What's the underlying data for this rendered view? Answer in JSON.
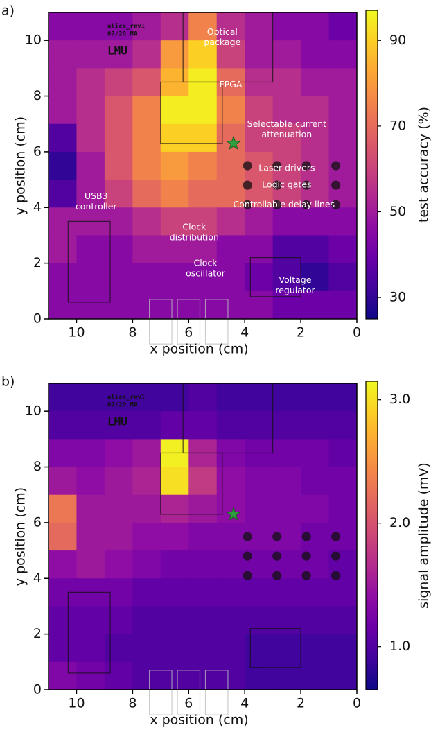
{
  "chart_data": [
    {
      "type": "heatmap",
      "panel_label": "a)",
      "xlabel": "x position (cm)",
      "ylabel": "y position (cm)",
      "colorbar_label": "test accuracy (%)",
      "colormap": "plasma",
      "xlim": [
        11,
        0
      ],
      "ylim": [
        0,
        11
      ],
      "xticks": [
        10,
        8,
        6,
        4,
        2,
        0
      ],
      "yticks": [
        0,
        2,
        4,
        6,
        8,
        10
      ],
      "x_bins": [
        11,
        10,
        9,
        8,
        7,
        6,
        5,
        4,
        3,
        2,
        1,
        0
      ],
      "y_bins": [
        11,
        10,
        9,
        8,
        7,
        6,
        5,
        4,
        3,
        2,
        1,
        0
      ],
      "clim": [
        25,
        97
      ],
      "cticks": [
        30,
        50,
        70,
        90
      ],
      "z": [
        [
          45,
          45,
          45,
          50,
          55,
          75,
          55,
          50,
          45,
          45,
          40
        ],
        [
          50,
          50,
          50,
          55,
          80,
          90,
          60,
          50,
          50,
          45,
          45
        ],
        [
          50,
          55,
          60,
          65,
          85,
          95,
          70,
          55,
          55,
          50,
          50
        ],
        [
          50,
          55,
          65,
          75,
          95,
          95,
          75,
          60,
          55,
          55,
          50
        ],
        [
          35,
          55,
          65,
          75,
          90,
          90,
          70,
          60,
          60,
          55,
          50
        ],
        [
          30,
          50,
          65,
          75,
          80,
          75,
          70,
          65,
          60,
          55,
          50
        ],
        [
          35,
          50,
          60,
          70,
          75,
          70,
          70,
          65,
          60,
          55,
          50
        ],
        [
          50,
          50,
          50,
          55,
          60,
          60,
          55,
          50,
          45,
          45,
          45
        ],
        [
          50,
          45,
          45,
          50,
          50,
          50,
          45,
          45,
          35,
          35,
          40
        ],
        [
          45,
          45,
          45,
          45,
          45,
          45,
          45,
          40,
          35,
          30,
          35
        ],
        [
          45,
          45,
          45,
          45,
          45,
          45,
          45,
          45,
          40,
          40,
          40
        ]
      ],
      "marker": {
        "x": 4.4,
        "y": 6.3,
        "color": "#2e9e3e"
      },
      "board_text": [
        "alice_rev1",
        "07/20 MA",
        "LMU"
      ],
      "annotations": [
        [
          "Optical",
          "package"
        ],
        [
          "FPGA"
        ],
        [
          "Selectable current",
          "attenuation"
        ],
        [
          "Laser drivers"
        ],
        [
          "Logic gates"
        ],
        [
          "Controllable delay lines"
        ],
        [
          "USB3",
          "controller"
        ],
        [
          "Clock",
          "distribution"
        ],
        [
          "Clock",
          "oscillator"
        ],
        [
          "Voltage",
          "regulator"
        ]
      ]
    },
    {
      "type": "heatmap",
      "panel_label": "b)",
      "xlabel": "x position (cm)",
      "ylabel": "y position (cm)",
      "colorbar_label": "signal amplitude (mV)",
      "colormap": "plasma",
      "xlim": [
        11,
        0
      ],
      "ylim": [
        0,
        11
      ],
      "xticks": [
        10,
        8,
        6,
        4,
        2,
        0
      ],
      "yticks": [
        0,
        2,
        4,
        6,
        8,
        10
      ],
      "x_bins": [
        11,
        10,
        9,
        8,
        7,
        6,
        5,
        4,
        3,
        2,
        1,
        0
      ],
      "y_bins": [
        11,
        10,
        9,
        8,
        7,
        6,
        5,
        4,
        3,
        2,
        1,
        0
      ],
      "clim": [
        0.65,
        3.15
      ],
      "cticks": [
        {
          "value": 1,
          "label": "1.0"
        },
        {
          "value": 2,
          "label": "2.0"
        },
        {
          "value": 3,
          "label": "3.0"
        }
      ],
      "z": [
        [
          0.9,
          0.9,
          0.9,
          0.9,
          0.9,
          1.0,
          0.9,
          0.9,
          0.9,
          0.9,
          0.9
        ],
        [
          1.0,
          1.0,
          1.0,
          1.0,
          1.1,
          1.1,
          1.0,
          1.0,
          1.0,
          1.0,
          1.0
        ],
        [
          1.3,
          1.3,
          1.4,
          1.5,
          3.1,
          1.6,
          1.3,
          1.2,
          1.2,
          1.2,
          1.1
        ],
        [
          1.5,
          1.4,
          1.5,
          1.6,
          3.0,
          1.8,
          1.4,
          1.3,
          1.3,
          1.2,
          1.2
        ],
        [
          2.3,
          1.5,
          1.5,
          1.5,
          1.6,
          1.5,
          1.4,
          1.3,
          1.3,
          1.3,
          1.2
        ],
        [
          2.2,
          1.5,
          1.5,
          1.4,
          1.4,
          1.3,
          1.3,
          1.3,
          1.3,
          1.2,
          1.2
        ],
        [
          1.4,
          1.5,
          1.4,
          1.3,
          1.2,
          1.2,
          1.2,
          1.2,
          1.2,
          1.2,
          1.1
        ],
        [
          1.2,
          1.2,
          1.2,
          1.1,
          1.1,
          1.1,
          1.1,
          1.1,
          1.1,
          1.1,
          1.1
        ],
        [
          1.1,
          1.1,
          1.1,
          1.0,
          1.0,
          1.0,
          1.0,
          1.0,
          1.0,
          1.0,
          1.0
        ],
        [
          1.1,
          1.1,
          1.0,
          1.0,
          1.0,
          1.0,
          1.0,
          0.9,
          0.9,
          0.9,
          0.9
        ],
        [
          1.3,
          1.2,
          1.1,
          1.0,
          1.0,
          1.0,
          1.0,
          0.9,
          0.9,
          0.9,
          0.9
        ]
      ],
      "marker": {
        "x": 4.4,
        "y": 6.3,
        "color": "#2e9e3e"
      },
      "board_text": [
        "alice_rev1",
        "07/20 MA",
        "LMU"
      ]
    }
  ]
}
